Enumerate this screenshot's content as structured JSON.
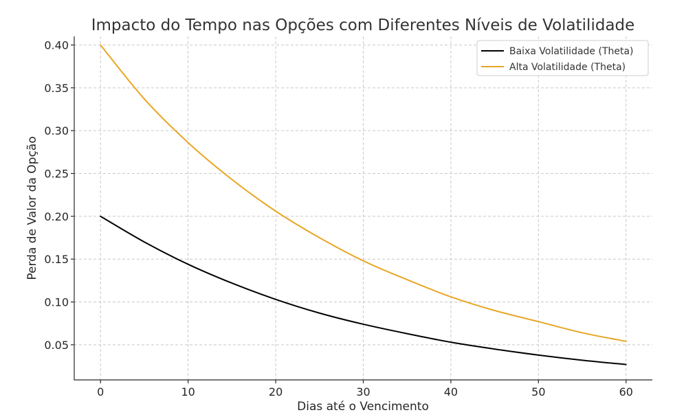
{
  "chart_data": {
    "type": "line",
    "title": "Impacto do Tempo nas Opções com Diferentes Níveis de Volatilidade",
    "xlabel": "Dias até o Vencimento",
    "ylabel": "Perda de Valor da Opção",
    "xlim": [
      -3,
      63
    ],
    "ylim": [
      0.009,
      0.41
    ],
    "xticks": [
      0,
      10,
      20,
      30,
      40,
      50,
      60
    ],
    "xtick_labels": [
      "0",
      "10",
      "20",
      "30",
      "40",
      "50",
      "60"
    ],
    "yticks": [
      0.05,
      0.1,
      0.15,
      0.2,
      0.25,
      0.3,
      0.35,
      0.4
    ],
    "ytick_labels": [
      "0.05",
      "0.10",
      "0.15",
      "0.20",
      "0.25",
      "0.30",
      "0.35",
      "0.40"
    ],
    "grid": true,
    "legend_position": "top-right",
    "x": [
      0,
      5,
      10,
      15,
      20,
      25,
      30,
      35,
      40,
      45,
      50,
      55,
      60
    ],
    "series": [
      {
        "name": "Baixa Volatilidade (Theta)",
        "color": "#000000",
        "values": [
          0.2,
          0.17,
          0.144,
          0.122,
          0.103,
          0.087,
          0.074,
          0.063,
          0.053,
          0.045,
          0.038,
          0.032,
          0.027
        ]
      },
      {
        "name": "Alta Volatilidade (Theta)",
        "color": "#E8A623",
        "values": [
          0.4,
          0.337,
          0.286,
          0.243,
          0.206,
          0.175,
          0.148,
          0.126,
          0.106,
          0.09,
          0.077,
          0.064,
          0.054
        ]
      }
    ]
  }
}
